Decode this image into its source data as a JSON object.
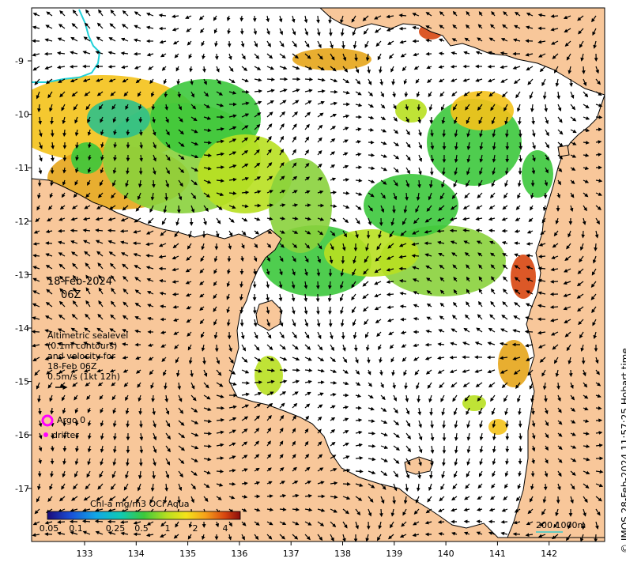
{
  "map": {
    "date": "18-Feb-2024",
    "time": "06Z",
    "annotation_lines": [
      "Altimetric sealevel",
      "(0.1m contours)",
      "and velocity for",
      "18-Feb 06Z",
      "0.5m/s (1kt 12h)"
    ],
    "legend": {
      "argo_label": "Argo 0",
      "drifter_label": "drifter"
    },
    "colorbar": {
      "title": "Chl-a mg/m3 OCi Aqua",
      "ticks": [
        "0.05",
        "0.1",
        "0.25",
        "0.5",
        "1",
        "2",
        "4"
      ]
    },
    "scale_label": "200  1000m",
    "credit": "© IMOS 28-Feb-2024 11:57:25 Hobart time",
    "x_ticks": [
      "133",
      "134",
      "135",
      "136",
      "137",
      "138",
      "139",
      "140",
      "141",
      "142"
    ],
    "y_ticks": [
      "9",
      "10",
      "11",
      "12",
      "13",
      "14",
      "15",
      "16",
      "17"
    ],
    "colors": {
      "land": "#f8c79a",
      "ocean": "#ffffff",
      "argo": "#ff00ff",
      "scale_line": "#33cccc"
    }
  }
}
